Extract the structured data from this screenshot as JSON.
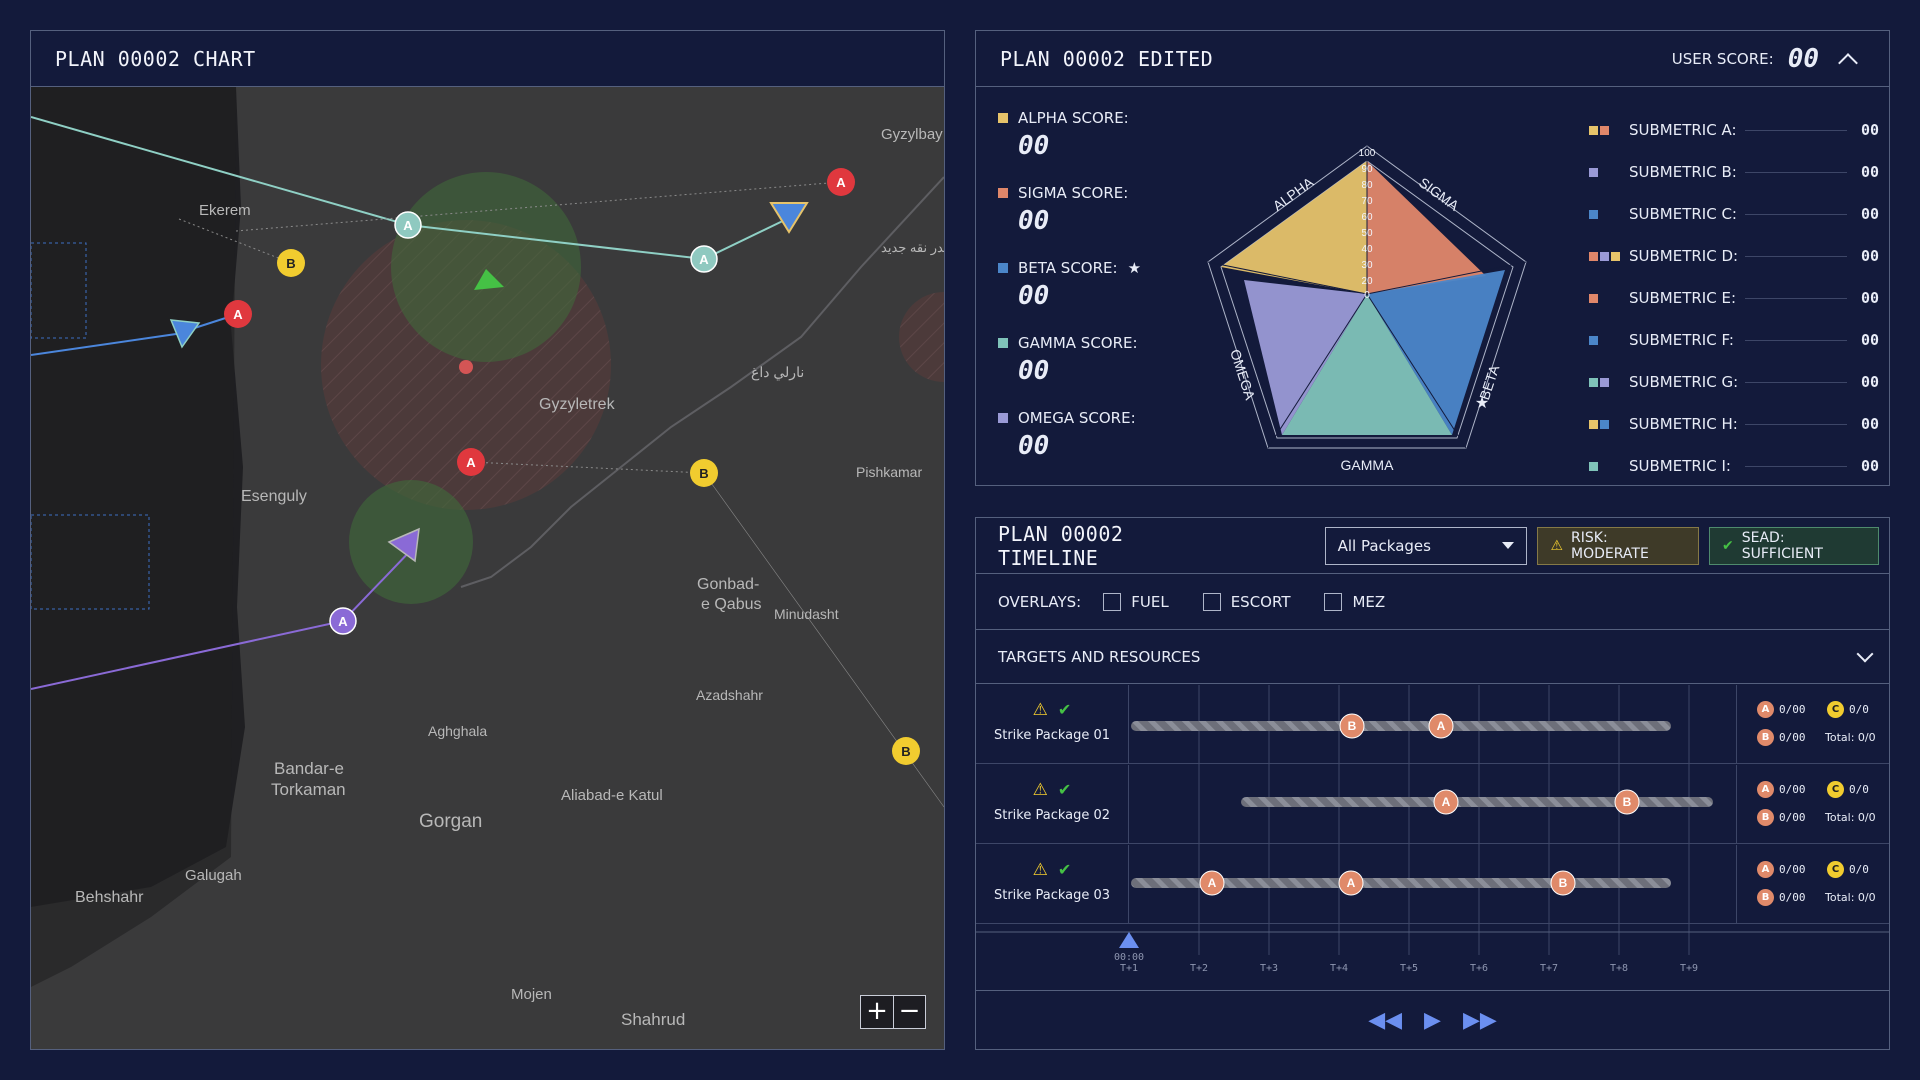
{
  "map": {
    "title": "PLAN 00002 CHART",
    "zoom_in": "+",
    "zoom_out": "−",
    "places": [
      "Gyzylbay",
      "Ekerem",
      "Gyzyletrek",
      "Esenguly",
      "Pishkamar",
      "Gonbad-",
      "e Qabus",
      "Minudasht",
      "Azadshahr",
      "Aghghala",
      "Bandar-e",
      "Torkaman",
      "Aliabad-e Katul",
      "Gorgan",
      "Galugah",
      "Behshahr",
      "Mojen",
      "Shahrud",
      "نارلي داغ",
      "بندر نقه جديد"
    ],
    "markers": {
      "a": "A",
      "b": "B"
    }
  },
  "scores": {
    "title": "PLAN 00002 EDITED",
    "user_score_label": "USER SCORE:",
    "user_score_value": "00",
    "items": [
      {
        "label": "ALPHA SCORE:",
        "value": "00",
        "color": "#e6c36a"
      },
      {
        "label": "SIGMA SCORE:",
        "value": "00",
        "color": "#e0876a"
      },
      {
        "label": "BETA SCORE:",
        "value": "00",
        "color": "#4b86c9",
        "star": "★"
      },
      {
        "label": "GAMMA SCORE:",
        "value": "00",
        "color": "#7fc3b9"
      },
      {
        "label": "OMEGA SCORE:",
        "value": "00",
        "color": "#9a9ad6"
      }
    ],
    "radar": {
      "axes": [
        "ALPHA",
        "SIGMA",
        "BETA",
        "GAMMA",
        "OMEGA"
      ],
      "ticks": [
        "100",
        "90",
        "80",
        "70",
        "60",
        "50",
        "40",
        "30",
        "20",
        "10",
        "0"
      ],
      "star": "★"
    },
    "submetrics": [
      {
        "label": "SUBMETRIC A:",
        "value": "00",
        "colors": [
          "#e6c36a",
          "#e0876a"
        ]
      },
      {
        "label": "SUBMETRIC B:",
        "value": "00",
        "colors": [
          "#9a9ad6"
        ]
      },
      {
        "label": "SUBMETRIC C:",
        "value": "00",
        "colors": [
          "#4b86c9"
        ]
      },
      {
        "label": "SUBMETRIC D:",
        "value": "00",
        "colors": [
          "#e0876a",
          "#9a9ad6",
          "#e6c36a"
        ]
      },
      {
        "label": "SUBMETRIC E:",
        "value": "00",
        "colors": [
          "#e0876a"
        ]
      },
      {
        "label": "SUBMETRIC F:",
        "value": "00",
        "colors": [
          "#4b86c9"
        ]
      },
      {
        "label": "SUBMETRIC G:",
        "value": "00",
        "colors": [
          "#7fc3b9",
          "#9a9ad6"
        ]
      },
      {
        "label": "SUBMETRIC H:",
        "value": "00",
        "colors": [
          "#e6c36a",
          "#4b86c9"
        ]
      },
      {
        "label": "SUBMETRIC I:",
        "value": "00",
        "colors": [
          "#7fc3b9"
        ]
      }
    ]
  },
  "timeline": {
    "title": "PLAN 00002 TIMELINE",
    "select_value": "All Packages",
    "risk_label": "RISK: MODERATE",
    "sead_label": "SEAD: SUFFICIENT",
    "overlays_label": "OVERLAYS:",
    "overlays": [
      "FUEL",
      "ESCORT",
      "MEZ"
    ],
    "section_title": "TARGETS AND RESOURCES",
    "packages": [
      {
        "name": "Strike Package 01",
        "stats": {
          "a": "0/00",
          "b": "0/00",
          "c": "0/0",
          "total": "Total: 0/0"
        }
      },
      {
        "name": "Strike Package 02",
        "stats": {
          "a": "0/00",
          "b": "0/00",
          "c": "0/0",
          "total": "Total: 0/0"
        }
      },
      {
        "name": "Strike Package 03",
        "stats": {
          "a": "0/00",
          "b": "0/00",
          "c": "0/0",
          "total": "Total: 0/0"
        }
      }
    ],
    "time_now": "00:00",
    "ticks": [
      "T+1",
      "T+2",
      "T+3",
      "T+4",
      "T+5",
      "T+6",
      "T+7",
      "T+8",
      "T+9"
    ],
    "marker_letters": {
      "a": "A",
      "b": "B",
      "c": "C"
    },
    "controls": {
      "rewind": "◀◀",
      "play": "▶",
      "forward": "▶▶"
    }
  }
}
